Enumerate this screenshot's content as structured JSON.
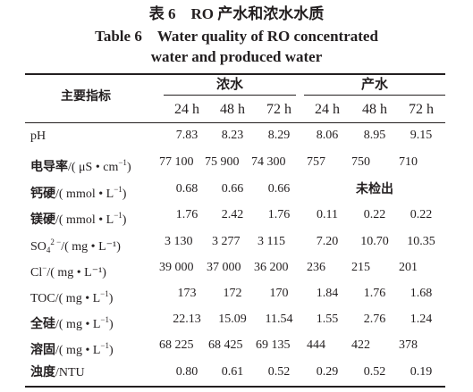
{
  "caption": {
    "cn": "表 6　RO 产水和浓水水质",
    "en_line1": "Table 6　Water quality of RO concentrated",
    "en_line2": "water and produced water"
  },
  "header": {
    "indicator": "主要指标",
    "groups": [
      "浓水",
      "产水"
    ],
    "times": [
      "24 h",
      "48 h",
      "72 h",
      "24 h",
      "48 h",
      "72 h"
    ]
  },
  "rows": [
    {
      "label_cn": "",
      "label_main": "pH",
      "label_sup": "",
      "label_sub": "",
      "label_unit": "",
      "values": [
        "7.83",
        "8.23",
        "8.29",
        "8.06",
        "8.95",
        "9.15"
      ]
    },
    {
      "label_cn": "电导率",
      "label_main": "/( μS • cm",
      "label_sup": "−1",
      "label_sub": "",
      "label_unit": ")",
      "values": [
        "77 100",
        "75 900",
        "74 300",
        "757",
        "750",
        "710"
      ]
    },
    {
      "label_cn": "钙硬",
      "label_main": "/( mmol • L",
      "label_sup": "−1",
      "label_sub": "",
      "label_unit": ")",
      "values": [
        "0.68",
        "0.66",
        "0.66"
      ],
      "produced_span": "未检出"
    },
    {
      "label_cn": "镁硬",
      "label_main": "/( mmol • L",
      "label_sup": "−1",
      "label_sub": "",
      "label_unit": ")",
      "values": [
        "1.76",
        "2.42",
        "1.76",
        "0.11",
        "0.22",
        "0.22"
      ]
    },
    {
      "label_cn": "",
      "label_main": "SO",
      "label_sub": "4",
      "label_sup": "2 −",
      "label_unit": "/( mg • L⁻¹)",
      "values": [
        "3 130",
        "3 277",
        "3 115",
        "7.20",
        "10.70",
        "10.35"
      ]
    },
    {
      "label_cn": "",
      "label_main": "Cl",
      "label_sub": "",
      "label_sup": "−",
      "label_unit": "/( mg • L⁻¹)",
      "values": [
        "39 000",
        "37 000",
        "36 200",
        "236",
        "215",
        "201"
      ]
    },
    {
      "label_cn": "",
      "label_main": "TOC/( mg • L",
      "label_sup": "−1",
      "label_sub": "",
      "label_unit": ")",
      "values": [
        "173",
        "172",
        "170",
        "1.84",
        "1.76",
        "1.68"
      ]
    },
    {
      "label_cn": "全硅",
      "label_main": "/( mg • L",
      "label_sup": "−1",
      "label_sub": "",
      "label_unit": ")",
      "values": [
        "22.13",
        "15.09",
        "11.54",
        "1.55",
        "2.76",
        "1.24"
      ]
    },
    {
      "label_cn": "溶固",
      "label_main": "/( mg • L",
      "label_sup": "−1",
      "label_sub": "",
      "label_unit": ")",
      "values": [
        "68 225",
        "68 425",
        "69 135",
        "444",
        "422",
        "378"
      ]
    },
    {
      "label_cn": "浊度",
      "label_main": "/NTU",
      "label_sup": "",
      "label_sub": "",
      "label_unit": "",
      "values": [
        "0.80",
        "0.61",
        "0.52",
        "0.29",
        "0.52",
        "0.19"
      ]
    }
  ]
}
